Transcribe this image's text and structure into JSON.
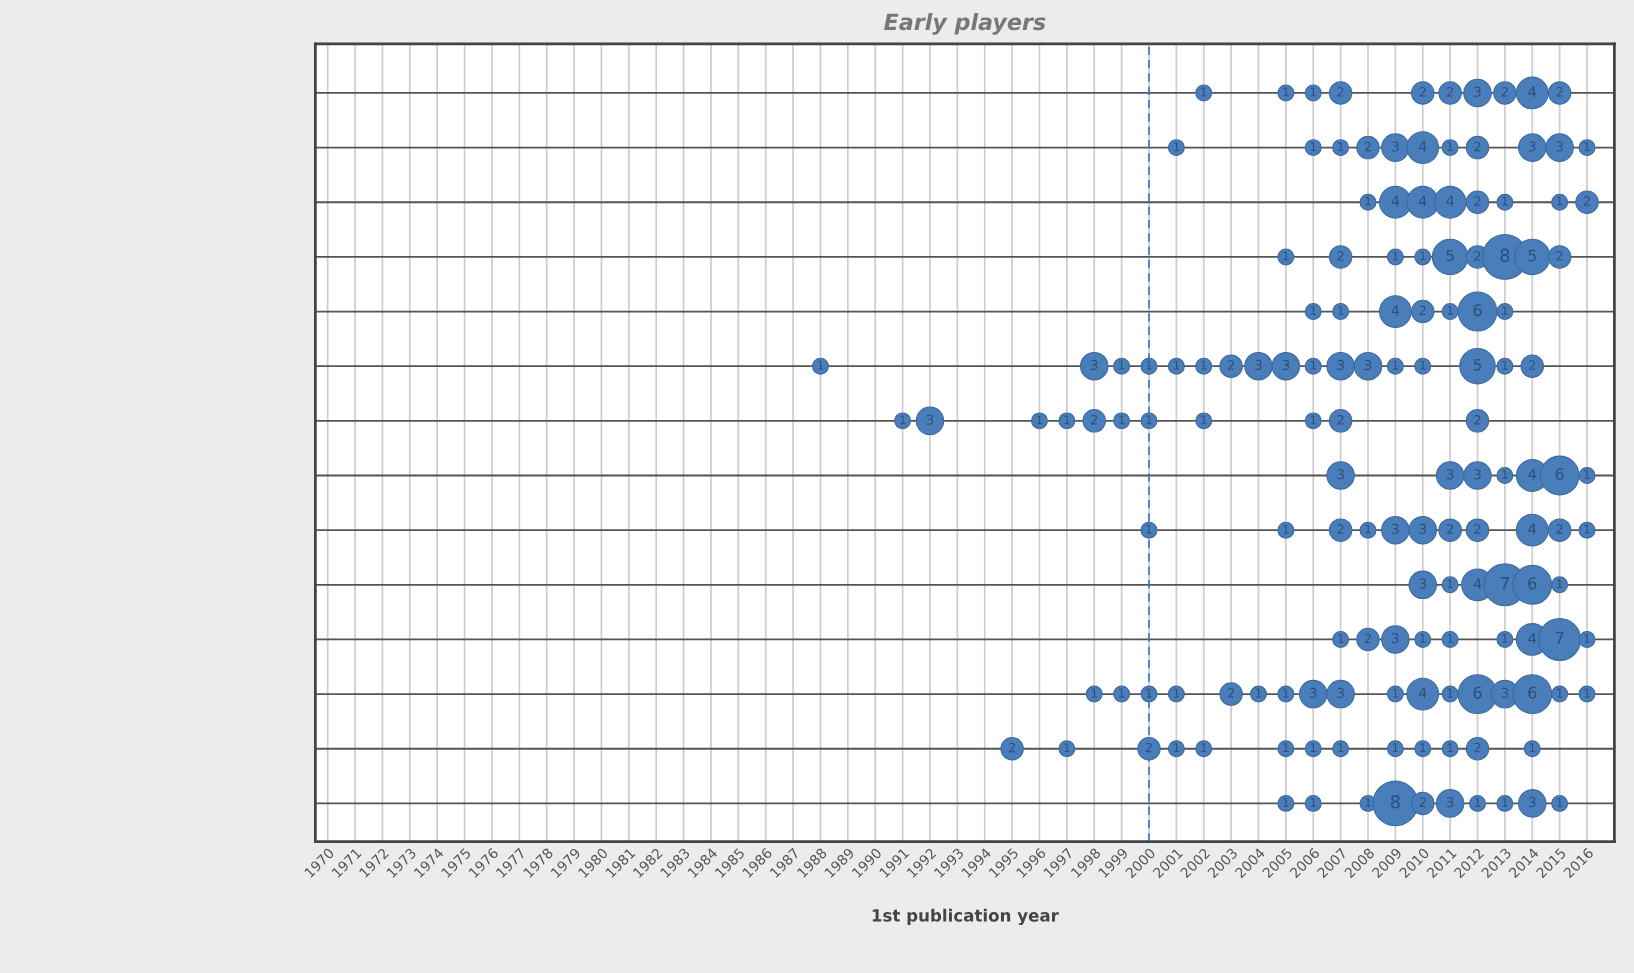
{
  "chart_data": {
    "type": "heatmap",
    "title": "Early players",
    "xlabel": "1st publication year",
    "color": "#4a7ebb",
    "categories": [
      "1970",
      "1971",
      "1972",
      "1973",
      "1974",
      "1975",
      "1976",
      "1977",
      "1978",
      "1979",
      "1980",
      "1981",
      "1982",
      "1983",
      "1984",
      "1985",
      "1986",
      "1987",
      "1988",
      "1989",
      "1990",
      "1991",
      "1992",
      "1993",
      "1994",
      "1995",
      "1996",
      "1997",
      "1998",
      "1999",
      "2000",
      "2001",
      "2002",
      "2003",
      "2004",
      "2005",
      "2006",
      "2007",
      "2008",
      "2009",
      "2010",
      "2011",
      "2012",
      "2013",
      "2014",
      "2015",
      "2016"
    ],
    "y_categories": [
      null,
      null,
      null,
      null,
      null,
      null,
      null,
      null,
      null,
      null,
      null,
      null,
      null,
      null
    ],
    "tick_labels": "x",
    "grid": true,
    "data_labels": true,
    "ref_lines": [
      {
        "axis": "x",
        "value": "2000",
        "color": "#3a78c9",
        "line_style": "dashed"
      }
    ],
    "cells": [
      [
        null,
        null,
        null,
        null,
        null,
        null,
        null,
        null,
        null,
        null,
        null,
        null,
        null,
        null,
        null,
        null,
        null,
        null,
        null,
        null,
        null,
        null,
        null,
        null,
        null,
        null,
        null,
        null,
        null,
        null,
        null,
        null,
        1,
        null,
        null,
        1,
        1,
        2,
        null,
        null,
        2,
        2,
        3,
        2,
        4,
        2,
        null
      ],
      [
        null,
        null,
        null,
        null,
        null,
        null,
        null,
        null,
        null,
        null,
        null,
        null,
        null,
        null,
        null,
        null,
        null,
        null,
        null,
        null,
        null,
        null,
        null,
        null,
        null,
        null,
        null,
        null,
        null,
        null,
        null,
        1,
        null,
        null,
        null,
        null,
        1,
        1,
        2,
        3,
        4,
        1,
        2,
        null,
        3,
        3,
        1
      ],
      [
        null,
        null,
        null,
        null,
        null,
        null,
        null,
        null,
        null,
        null,
        null,
        null,
        null,
        null,
        null,
        null,
        null,
        null,
        null,
        null,
        null,
        null,
        null,
        null,
        null,
        null,
        null,
        null,
        null,
        null,
        null,
        null,
        null,
        null,
        null,
        null,
        null,
        null,
        1,
        4,
        4,
        4,
        2,
        1,
        null,
        1,
        2
      ],
      [
        null,
        null,
        null,
        null,
        null,
        null,
        null,
        null,
        null,
        null,
        null,
        null,
        null,
        null,
        null,
        null,
        null,
        null,
        null,
        null,
        null,
        null,
        null,
        null,
        null,
        null,
        null,
        null,
        null,
        null,
        null,
        null,
        null,
        null,
        null,
        1,
        null,
        2,
        null,
        1,
        1,
        5,
        2,
        8,
        5,
        2,
        null
      ],
      [
        null,
        null,
        null,
        null,
        null,
        null,
        null,
        null,
        null,
        null,
        null,
        null,
        null,
        null,
        null,
        null,
        null,
        null,
        null,
        null,
        null,
        null,
        null,
        null,
        null,
        null,
        null,
        null,
        null,
        null,
        null,
        null,
        null,
        null,
        null,
        null,
        1,
        1,
        null,
        4,
        2,
        1,
        6,
        1,
        null,
        null,
        null
      ],
      [
        null,
        null,
        null,
        null,
        null,
        null,
        null,
        null,
        null,
        null,
        null,
        null,
        null,
        null,
        null,
        null,
        null,
        null,
        1,
        null,
        null,
        null,
        null,
        null,
        null,
        null,
        null,
        null,
        3,
        1,
        1,
        1,
        1,
        2,
        3,
        3,
        1,
        3,
        3,
        1,
        1,
        null,
        5,
        1,
        2,
        null,
        null
      ],
      [
        null,
        null,
        null,
        null,
        null,
        null,
        null,
        null,
        null,
        null,
        null,
        null,
        null,
        null,
        null,
        null,
        null,
        null,
        null,
        null,
        null,
        1,
        3,
        null,
        null,
        null,
        1,
        1,
        2,
        1,
        1,
        null,
        1,
        null,
        null,
        null,
        1,
        2,
        null,
        null,
        null,
        null,
        2,
        null,
        null,
        null,
        null
      ],
      [
        null,
        null,
        null,
        null,
        null,
        null,
        null,
        null,
        null,
        null,
        null,
        null,
        null,
        null,
        null,
        null,
        null,
        null,
        null,
        null,
        null,
        null,
        null,
        null,
        null,
        null,
        null,
        null,
        null,
        null,
        null,
        null,
        null,
        null,
        null,
        null,
        null,
        3,
        null,
        null,
        null,
        3,
        3,
        1,
        4,
        6,
        1
      ],
      [
        null,
        null,
        null,
        null,
        null,
        null,
        null,
        null,
        null,
        null,
        null,
        null,
        null,
        null,
        null,
        null,
        null,
        null,
        null,
        null,
        null,
        null,
        null,
        null,
        null,
        null,
        null,
        null,
        null,
        null,
        1,
        null,
        null,
        null,
        null,
        1,
        null,
        2,
        1,
        3,
        3,
        2,
        2,
        null,
        4,
        2,
        1
      ],
      [
        null,
        null,
        null,
        null,
        null,
        null,
        null,
        null,
        null,
        null,
        null,
        null,
        null,
        null,
        null,
        null,
        null,
        null,
        null,
        null,
        null,
        null,
        null,
        null,
        null,
        null,
        null,
        null,
        null,
        null,
        null,
        null,
        null,
        null,
        null,
        null,
        null,
        null,
        null,
        null,
        3,
        1,
        4,
        7,
        6,
        1,
        null
      ],
      [
        null,
        null,
        null,
        null,
        null,
        null,
        null,
        null,
        null,
        null,
        null,
        null,
        null,
        null,
        null,
        null,
        null,
        null,
        null,
        null,
        null,
        null,
        null,
        null,
        null,
        null,
        null,
        null,
        null,
        null,
        null,
        null,
        null,
        null,
        null,
        null,
        null,
        1,
        2,
        3,
        1,
        1,
        null,
        1,
        4,
        7,
        1
      ],
      [
        null,
        null,
        null,
        null,
        null,
        null,
        null,
        null,
        null,
        null,
        null,
        null,
        null,
        null,
        null,
        null,
        null,
        null,
        null,
        null,
        null,
        null,
        null,
        null,
        null,
        null,
        null,
        null,
        1,
        1,
        1,
        1,
        null,
        2,
        1,
        1,
        3,
        3,
        null,
        1,
        4,
        1,
        6,
        3,
        6,
        1,
        1
      ],
      [
        null,
        null,
        null,
        null,
        null,
        null,
        null,
        null,
        null,
        null,
        null,
        null,
        null,
        null,
        null,
        null,
        null,
        null,
        null,
        null,
        null,
        null,
        null,
        null,
        null,
        2,
        null,
        1,
        null,
        null,
        2,
        1,
        1,
        null,
        null,
        1,
        1,
        1,
        null,
        1,
        1,
        1,
        2,
        null,
        1,
        null,
        null
      ],
      [
        null,
        null,
        null,
        null,
        null,
        null,
        null,
        null,
        null,
        null,
        null,
        null,
        null,
        null,
        null,
        null,
        null,
        null,
        null,
        null,
        null,
        null,
        null,
        null,
        null,
        null,
        null,
        null,
        null,
        null,
        null,
        null,
        null,
        null,
        null,
        1,
        1,
        null,
        1,
        8,
        2,
        3,
        1,
        1,
        3,
        1,
        null
      ]
    ]
  }
}
